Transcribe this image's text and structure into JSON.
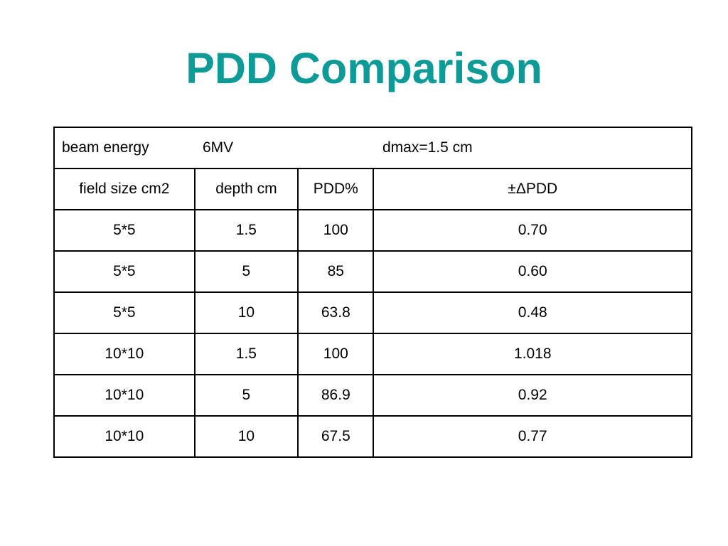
{
  "slide": {
    "title": "PDD Comparison",
    "title_color": "#0e9a96"
  },
  "table": {
    "info": {
      "beam_energy_label": "beam energy",
      "beam_energy_value": "6MV",
      "dmax": "dmax=1.5 cm"
    },
    "headers": [
      "field size cm2",
      "depth cm",
      "PDD%",
      "±ΔPDD"
    ],
    "rows": [
      [
        "5*5",
        "1.5",
        "100",
        "0.70"
      ],
      [
        "5*5",
        "5",
        "85",
        "0.60"
      ],
      [
        "5*5",
        "10",
        "63.8",
        "0.48"
      ],
      [
        "10*10",
        "1.5",
        "100",
        "1.018"
      ],
      [
        "10*10",
        "5",
        "86.9",
        "0.92"
      ],
      [
        "10*10",
        "10",
        "67.5",
        "0.77"
      ]
    ]
  }
}
